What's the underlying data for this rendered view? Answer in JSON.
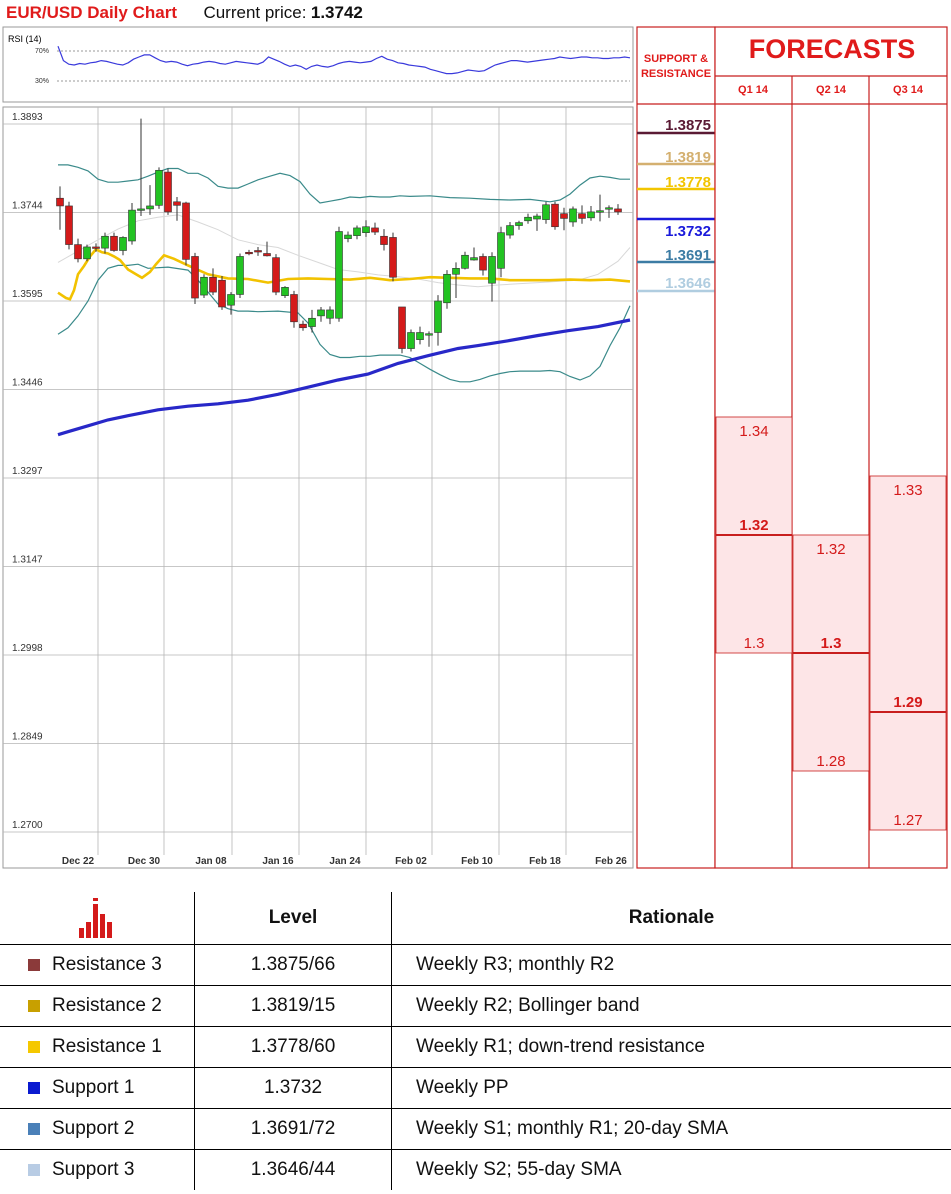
{
  "header": {
    "title": "EUR/USD Daily Chart",
    "price_label": "Current price:",
    "price_value": "1.3742"
  },
  "chart_data": {
    "type": "candlestick",
    "title": "EUR/USD Daily Chart",
    "x_tick_labels": [
      "Dec 22",
      "Dec 30",
      "Jan 08",
      "Jan 16",
      "Jan 24",
      "Feb 02",
      "Feb 10",
      "Feb 18",
      "Feb 26"
    ],
    "y_tick_labels": [
      "1.3893",
      "1.3744",
      "1.3595",
      "1.3446",
      "1.3297",
      "1.3147",
      "1.2998",
      "1.2849",
      "1.2700"
    ],
    "ylim": [
      1.27,
      1.3893
    ],
    "grid": true,
    "candles": [
      [
        1.3758,
        1.3778,
        1.3705,
        1.3745
      ],
      [
        1.3745,
        1.3752,
        1.3672,
        1.368
      ],
      [
        1.368,
        1.369,
        1.365,
        1.3656
      ],
      [
        1.3656,
        1.368,
        1.3652,
        1.3676
      ],
      [
        1.3676,
        1.3682,
        1.3668,
        1.3674
      ],
      [
        1.3674,
        1.37,
        1.3665,
        1.3694
      ],
      [
        1.3694,
        1.37,
        1.3668,
        1.367
      ],
      [
        1.367,
        1.3694,
        1.3662,
        1.3692
      ],
      [
        1.3686,
        1.375,
        1.368,
        1.3738
      ],
      [
        1.374,
        1.3892,
        1.3728,
        1.374
      ],
      [
        1.374,
        1.378,
        1.373,
        1.3745
      ],
      [
        1.3746,
        1.381,
        1.374,
        1.3805
      ],
      [
        1.3802,
        1.3808,
        1.373,
        1.3735
      ],
      [
        1.3752,
        1.376,
        1.372,
        1.3746
      ],
      [
        1.375,
        1.3752,
        1.3645,
        1.3655
      ],
      [
        1.366,
        1.3666,
        1.358,
        1.359
      ],
      [
        1.3595,
        1.363,
        1.359,
        1.3625
      ],
      [
        1.3625,
        1.364,
        1.3595,
        1.36
      ],
      [
        1.362,
        1.3627,
        1.357,
        1.3575
      ],
      [
        1.3578,
        1.36,
        1.3562,
        1.3596
      ],
      [
        1.3596,
        1.3665,
        1.359,
        1.366
      ],
      [
        1.3667,
        1.3671,
        1.3662,
        1.3665
      ],
      [
        1.367,
        1.3676,
        1.3661,
        1.3668
      ],
      [
        1.3665,
        1.3685,
        1.366,
        1.3661
      ],
      [
        1.3658,
        1.3664,
        1.3595,
        1.36
      ],
      [
        1.3594,
        1.361,
        1.359,
        1.3608
      ],
      [
        1.3596,
        1.3602,
        1.354,
        1.355
      ],
      [
        1.3546,
        1.3552,
        1.3535,
        1.354
      ],
      [
        1.3542,
        1.357,
        1.3532,
        1.3556
      ],
      [
        1.356,
        1.3575,
        1.355,
        1.357
      ],
      [
        1.3556,
        1.3576,
        1.3546,
        1.357
      ],
      [
        1.3556,
        1.371,
        1.355,
        1.3702
      ],
      [
        1.369,
        1.3702,
        1.3684,
        1.3696
      ],
      [
        1.3695,
        1.3712,
        1.3689,
        1.3708
      ],
      [
        1.37,
        1.3721,
        1.3693,
        1.371
      ],
      [
        1.3708,
        1.3717,
        1.3696,
        1.3701
      ],
      [
        1.3694,
        1.3706,
        1.367,
        1.368
      ],
      [
        1.3692,
        1.37,
        1.3618,
        1.3625
      ],
      [
        1.3575,
        1.3575,
        1.3497,
        1.3505
      ],
      [
        1.3505,
        1.3537,
        1.35,
        1.3532
      ],
      [
        1.352,
        1.3542,
        1.3512,
        1.3532
      ],
      [
        1.3528,
        1.3534,
        1.3508,
        1.353
      ],
      [
        1.3532,
        1.3595,
        1.351,
        1.3585
      ],
      [
        1.3582,
        1.3637,
        1.3572,
        1.363
      ],
      [
        1.363,
        1.365,
        1.359,
        1.364
      ],
      [
        1.364,
        1.3668,
        1.3638,
        1.3662
      ],
      [
        1.3654,
        1.3675,
        1.3653,
        1.3658
      ],
      [
        1.366,
        1.3665,
        1.3628,
        1.3637
      ],
      [
        1.3615,
        1.3667,
        1.3584,
        1.366
      ],
      [
        1.364,
        1.371,
        1.3625,
        1.37
      ],
      [
        1.3696,
        1.3718,
        1.369,
        1.3712
      ],
      [
        1.3712,
        1.372,
        1.3705,
        1.3717
      ],
      [
        1.372,
        1.3732,
        1.3715,
        1.3726
      ],
      [
        1.3723,
        1.3732,
        1.3703,
        1.3728
      ],
      [
        1.3722,
        1.3752,
        1.3715,
        1.3747
      ],
      [
        1.3748,
        1.3752,
        1.3705,
        1.371
      ],
      [
        1.3732,
        1.3742,
        1.3704,
        1.3724
      ],
      [
        1.3718,
        1.3744,
        1.371,
        1.374
      ],
      [
        1.3732,
        1.3746,
        1.3715,
        1.3724
      ],
      [
        1.3725,
        1.3745,
        1.372,
        1.3735
      ],
      [
        1.3736,
        1.3764,
        1.3719,
        1.3737
      ],
      [
        1.374,
        1.3746,
        1.3725,
        1.3742
      ],
      [
        1.374,
        1.3748,
        1.373,
        1.3735
      ]
    ],
    "sma_55": [
      [
        0,
        1.3599
      ],
      [
        8,
        1.359
      ],
      [
        12,
        1.3588
      ],
      [
        16,
        1.3603
      ],
      [
        20,
        1.363
      ],
      [
        26,
        1.3644
      ],
      [
        32,
        1.366
      ],
      [
        38,
        1.3672
      ],
      [
        44,
        1.3667
      ],
      [
        50,
        1.3665
      ],
      [
        56,
        1.366
      ],
      [
        62,
        1.3654
      ],
      [
        70,
        1.3638
      ],
      [
        78,
        1.363
      ],
      [
        84,
        1.3624
      ],
      [
        92,
        1.3634
      ],
      [
        98,
        1.3647
      ],
      [
        106,
        1.3662
      ],
      [
        116,
        1.3656
      ],
      [
        130,
        1.3645
      ],
      [
        150,
        1.363
      ],
      [
        170,
        1.3623
      ],
      [
        190,
        1.3622
      ],
      [
        210,
        1.3616
      ],
      [
        230,
        1.3622
      ],
      [
        250,
        1.3623
      ],
      [
        270,
        1.3622
      ],
      [
        292,
        1.3621
      ],
      [
        312,
        1.3624
      ],
      [
        332,
        1.362
      ],
      [
        352,
        1.3622
      ],
      [
        372,
        1.3625
      ],
      [
        392,
        1.3624
      ],
      [
        412,
        1.3623
      ],
      [
        432,
        1.3623
      ],
      [
        452,
        1.362
      ],
      [
        472,
        1.362
      ],
      [
        492,
        1.362
      ],
      [
        512,
        1.3621
      ],
      [
        532,
        1.362
      ],
      [
        552,
        1.3621
      ],
      [
        572,
        1.3618
      ]
    ],
    "sma_200": [
      [
        0,
        1.336
      ],
      [
        10,
        1.3365
      ],
      [
        30,
        1.3375
      ],
      [
        50,
        1.3385
      ],
      [
        70,
        1.3392
      ],
      [
        100,
        1.3402
      ],
      [
        130,
        1.3408
      ],
      [
        160,
        1.3412
      ],
      [
        190,
        1.3418
      ],
      [
        220,
        1.3428
      ],
      [
        250,
        1.344
      ],
      [
        280,
        1.3452
      ],
      [
        310,
        1.3462
      ],
      [
        340,
        1.348
      ],
      [
        370,
        1.3493
      ],
      [
        400,
        1.3505
      ],
      [
        420,
        1.351
      ],
      [
        450,
        1.3518
      ],
      [
        480,
        1.3527
      ],
      [
        510,
        1.3535
      ],
      [
        540,
        1.3542
      ],
      [
        572,
        1.3553
      ]
    ],
    "bollinger_upper": [
      [
        0,
        1.3814
      ],
      [
        10,
        1.3814
      ],
      [
        20,
        1.381
      ],
      [
        30,
        1.3804
      ],
      [
        40,
        1.379
      ],
      [
        50,
        1.3785
      ],
      [
        60,
        1.3785
      ],
      [
        70,
        1.3787
      ],
      [
        80,
        1.3789
      ],
      [
        90,
        1.3795
      ],
      [
        100,
        1.3802
      ],
      [
        110,
        1.3808
      ],
      [
        120,
        1.3808
      ],
      [
        130,
        1.38
      ],
      [
        140,
        1.38
      ],
      [
        150,
        1.3792
      ],
      [
        160,
        1.3778
      ],
      [
        170,
        1.3775
      ],
      [
        180,
        1.3775
      ],
      [
        190,
        1.3782
      ],
      [
        200,
        1.3789
      ],
      [
        212,
        1.3795
      ],
      [
        222,
        1.38
      ],
      [
        232,
        1.3796
      ],
      [
        242,
        1.3786
      ],
      [
        252,
        1.3765
      ],
      [
        262,
        1.375
      ],
      [
        272,
        1.3753
      ],
      [
        282,
        1.3756
      ],
      [
        292,
        1.376
      ],
      [
        302,
        1.3759
      ],
      [
        312,
        1.3761
      ],
      [
        322,
        1.376
      ],
      [
        332,
        1.376
      ],
      [
        342,
        1.3762
      ],
      [
        352,
        1.3761
      ],
      [
        372,
        1.3762
      ],
      [
        392,
        1.3759
      ],
      [
        412,
        1.3758
      ],
      [
        432,
        1.3756
      ],
      [
        452,
        1.3755
      ],
      [
        472,
        1.3756
      ],
      [
        492,
        1.3752
      ],
      [
        502,
        1.3755
      ],
      [
        512,
        1.3765
      ],
      [
        522,
        1.378
      ],
      [
        532,
        1.3792
      ],
      [
        542,
        1.3795
      ],
      [
        552,
        1.3793
      ],
      [
        562,
        1.379
      ],
      [
        572,
        1.379
      ]
    ],
    "bollinger_lower": [
      [
        0,
        1.3529
      ],
      [
        10,
        1.354
      ],
      [
        20,
        1.356
      ],
      [
        30,
        1.3585
      ],
      [
        40,
        1.362
      ],
      [
        50,
        1.364
      ],
      [
        60,
        1.3645
      ],
      [
        70,
        1.3645
      ],
      [
        80,
        1.3647
      ],
      [
        90,
        1.364
      ],
      [
        110,
        1.3642
      ],
      [
        130,
        1.3637
      ],
      [
        140,
        1.362
      ],
      [
        150,
        1.36
      ],
      [
        160,
        1.358
      ],
      [
        170,
        1.3572
      ],
      [
        180,
        1.3568
      ],
      [
        190,
        1.3568
      ],
      [
        200,
        1.3567
      ],
      [
        220,
        1.3568
      ],
      [
        240,
        1.3565
      ],
      [
        250,
        1.3548
      ],
      [
        262,
        1.3512
      ],
      [
        272,
        1.3495
      ],
      [
        282,
        1.349
      ],
      [
        292,
        1.349
      ],
      [
        302,
        1.3492
      ],
      [
        312,
        1.3492
      ],
      [
        322,
        1.3494
      ],
      [
        332,
        1.3494
      ],
      [
        342,
        1.3494
      ],
      [
        352,
        1.349
      ],
      [
        362,
        1.348
      ],
      [
        372,
        1.347
      ],
      [
        382,
        1.3461
      ],
      [
        392,
        1.3453
      ],
      [
        402,
        1.3449
      ],
      [
        412,
        1.3449
      ],
      [
        422,
        1.3453
      ],
      [
        432,
        1.3459
      ],
      [
        442,
        1.3463
      ],
      [
        452,
        1.3466
      ],
      [
        462,
        1.3467
      ],
      [
        472,
        1.3467
      ],
      [
        482,
        1.3467
      ],
      [
        492,
        1.3468
      ],
      [
        502,
        1.3466
      ],
      [
        512,
        1.3458
      ],
      [
        522,
        1.3452
      ],
      [
        532,
        1.3459
      ],
      [
        542,
        1.3475
      ],
      [
        552,
        1.351
      ],
      [
        562,
        1.354
      ],
      [
        572,
        1.3577
      ]
    ],
    "bollinger_mid": [
      [
        0,
        1.365
      ],
      [
        20,
        1.3669
      ],
      [
        40,
        1.3688
      ],
      [
        60,
        1.3706
      ],
      [
        80,
        1.372
      ],
      [
        100,
        1.3726
      ],
      [
        120,
        1.373
      ],
      [
        140,
        1.3718
      ],
      [
        160,
        1.3705
      ],
      [
        180,
        1.3688
      ],
      [
        200,
        1.368
      ],
      [
        220,
        1.3675
      ],
      [
        240,
        1.3662
      ],
      [
        260,
        1.365
      ],
      [
        280,
        1.3638
      ],
      [
        300,
        1.3634
      ],
      [
        320,
        1.3629
      ],
      [
        340,
        1.3626
      ],
      [
        360,
        1.3622
      ],
      [
        380,
        1.3616
      ],
      [
        400,
        1.3612
      ],
      [
        420,
        1.3609
      ],
      [
        440,
        1.3612
      ],
      [
        460,
        1.3614
      ],
      [
        480,
        1.3616
      ],
      [
        500,
        1.3618
      ],
      [
        520,
        1.362
      ],
      [
        540,
        1.363
      ],
      [
        560,
        1.3652
      ],
      [
        572,
        1.3675
      ]
    ],
    "rsi": {
      "label": "RSI (14)",
      "levels": [
        "70%",
        "30%"
      ],
      "values": [
        78,
        58,
        53,
        52,
        54,
        53,
        55,
        56,
        58,
        57,
        55,
        53,
        52,
        55,
        60,
        63,
        66,
        66,
        62,
        58,
        56,
        57,
        56,
        53,
        51,
        53,
        54,
        56,
        57,
        56,
        54,
        53,
        55,
        57,
        56,
        55,
        54,
        53,
        56,
        63,
        60,
        57,
        53,
        50,
        52,
        50,
        46,
        50,
        52,
        50,
        49,
        51,
        54,
        56,
        57,
        56,
        55,
        56,
        57,
        61,
        64,
        60,
        58,
        55,
        54,
        52,
        51,
        50,
        49,
        46,
        44,
        42,
        40,
        40,
        41,
        43,
        45,
        44,
        43,
        44,
        48,
        52,
        54,
        56,
        58,
        58,
        57,
        56,
        57,
        58,
        59,
        60,
        61,
        63,
        62,
        61,
        62,
        63,
        63,
        62,
        62,
        61,
        61,
        62,
        62,
        63,
        62
      ]
    }
  },
  "support_resistance": {
    "header": [
      "SUPPORT &",
      "RESISTANCE"
    ],
    "levels": [
      {
        "value": "1.3875",
        "color": "#5a1a34",
        "price": 1.3875
      },
      {
        "value": "1.3819",
        "color": "#d4b070",
        "price": 1.3819
      },
      {
        "value": "1.3778",
        "color": "#f2c500",
        "price": 1.3778
      },
      {
        "value": "1.3732",
        "color": "#1a1adb",
        "price": 1.3732
      },
      {
        "value": "1.3691",
        "color": "#3c7ca4",
        "price": 1.3691
      },
      {
        "value": "1.3646",
        "color": "#b0cde0",
        "price": 1.3646
      }
    ]
  },
  "forecasts": {
    "title": "FORECASTS",
    "columns": [
      {
        "label": "Q1 14",
        "high": "1.34",
        "mid": "1.32",
        "low": "1.3"
      },
      {
        "label": "Q2 14",
        "high": "1.32",
        "mid": "1.3",
        "low": "1.28"
      },
      {
        "label": "Q3 14",
        "high": "1.33",
        "mid": "1.29",
        "low": "1.27"
      }
    ]
  },
  "levels_table": {
    "headers": {
      "level": "Level",
      "rationale": "Rationale"
    },
    "rows": [
      {
        "name": "Resistance 3",
        "color": "#8b3a3a",
        "level": "1.3875/66",
        "rationale": "Weekly R3; monthly R2"
      },
      {
        "name": "Resistance 2",
        "color": "#c8a000",
        "level": "1.3819/15",
        "rationale": "Weekly R2; Bollinger band"
      },
      {
        "name": "Resistance 1",
        "color": "#f5c800",
        "level": "1.3778/60",
        "rationale": "Weekly R1; down-trend resistance"
      },
      {
        "name": "Support 1",
        "color": "#0a1ad0",
        "level": "1.3732",
        "rationale": "Weekly PP"
      },
      {
        "name": "Support 2",
        "color": "#4a80b8",
        "level": "1.3691/72",
        "rationale": "Weekly S1; monthly R1; 20-day SMA"
      },
      {
        "name": "Support 3",
        "color": "#b8cce4",
        "level": "1.3646/44",
        "rationale": "Weekly S2; 55-day SMA"
      }
    ]
  },
  "colors": {
    "accent": "#e01b1b",
    "bull": "#22c322",
    "bear": "#d41a1a",
    "sma55": "#f2c200",
    "sma200": "#2828c8",
    "bollinger": "#3a8a8a",
    "forecast_fill": "#fde5e7"
  }
}
